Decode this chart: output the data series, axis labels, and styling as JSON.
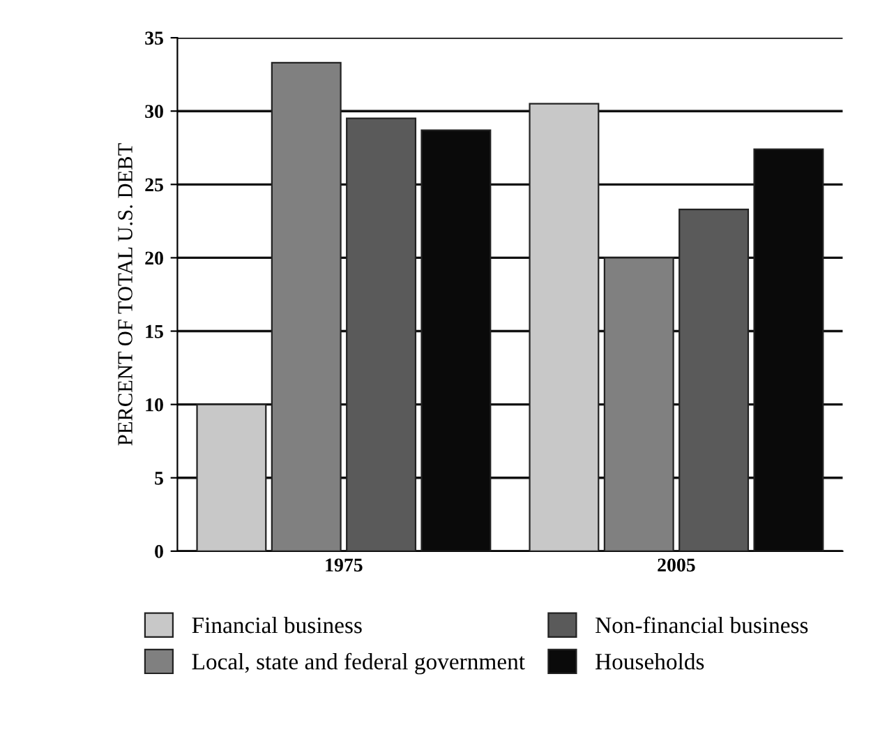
{
  "chart_data": {
    "type": "bar",
    "ylabel": "PERCENT OF TOTAL U.S. DEBT",
    "categories": [
      "1975",
      "2005"
    ],
    "series": [
      {
        "name": "Financial business",
        "color": "#c8c8c8",
        "values": [
          10,
          30.5
        ]
      },
      {
        "name": "Local, state and federal government",
        "color": "#808080",
        "values": [
          33.3,
          20
        ]
      },
      {
        "name": "Non-financial business",
        "color": "#5a5a5a",
        "values": [
          29.5,
          23.3
        ]
      },
      {
        "name": "Households",
        "color": "#0a0a0a",
        "values": [
          28.7,
          27.4
        ]
      }
    ],
    "ylim": [
      0,
      35
    ],
    "yticks": [
      0,
      5,
      10,
      15,
      20,
      25,
      30,
      35
    ],
    "grid": "y",
    "legend": "bottom"
  }
}
